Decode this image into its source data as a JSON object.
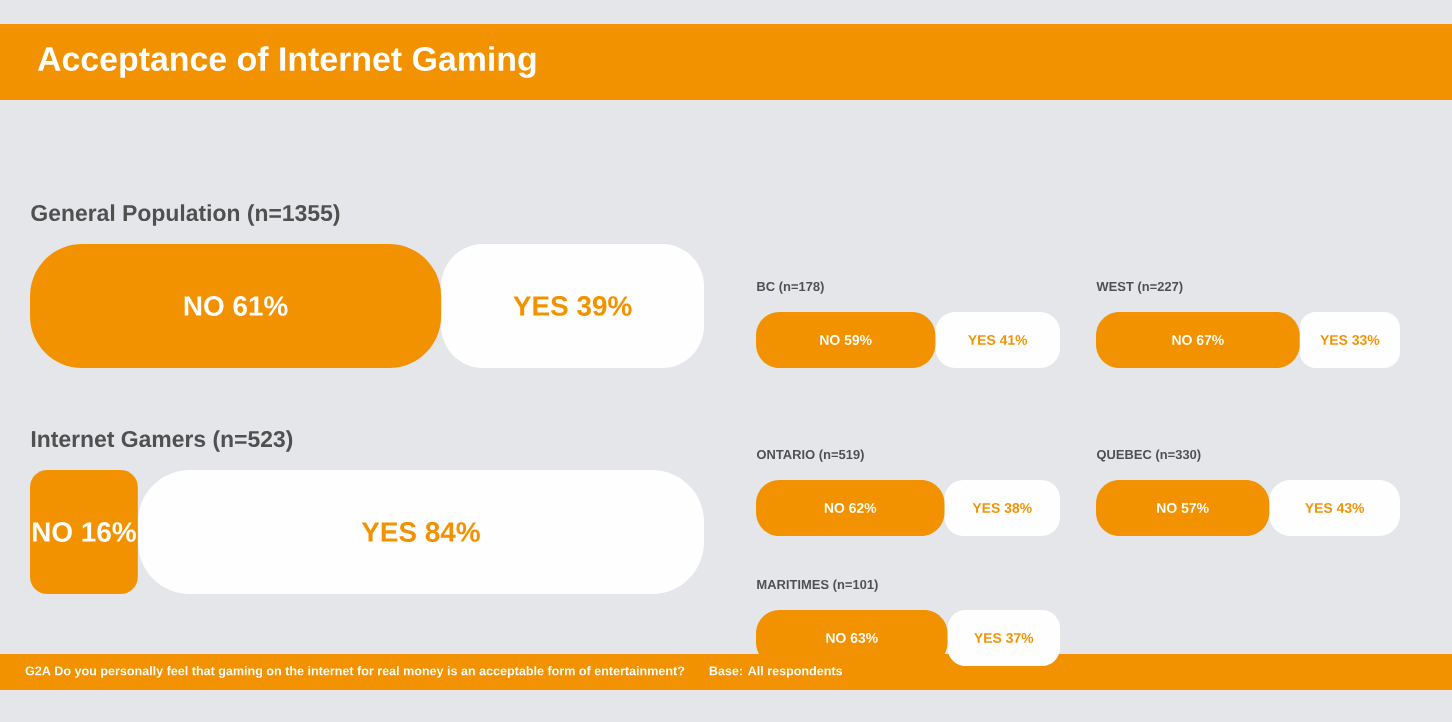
{
  "chart_data": [
    {
      "type": "other",
      "title": "Acceptance of Internet Gaming",
      "annotations": [
        "G2A Do you personally feel that gaming on the internet for real money is an acceptable form of entertainment?",
        "Base: All respondents"
      ]
    },
    {
      "type": "bar",
      "orientation": "horizontal",
      "stacked": true,
      "title": "General Population (n=1355)",
      "categories": [
        null
      ],
      "tick_labels": false,
      "series": [
        {
          "name": "NO",
          "color": "#f39200",
          "values": [
            61
          ],
          "value_labels": [
            "61%"
          ]
        },
        {
          "name": "YES",
          "color": "#fefefe",
          "values": [
            39
          ],
          "value_labels": [
            "39%"
          ]
        }
      ]
    },
    {
      "type": "bar",
      "orientation": "horizontal",
      "stacked": true,
      "title": "Internet Gamers (n=523)",
      "categories": [
        null
      ],
      "tick_labels": false,
      "series": [
        {
          "name": "NO",
          "color": "#f39200",
          "values": [
            16
          ],
          "value_labels": [
            "16%"
          ]
        },
        {
          "name": "YES",
          "color": "#fefefe",
          "values": [
            84
          ],
          "value_labels": [
            "84%"
          ]
        }
      ]
    },
    {
      "type": "bar",
      "orientation": "horizontal",
      "stacked": true,
      "title": "BC (n=178)",
      "categories": [
        null
      ],
      "tick_labels": false,
      "series": [
        {
          "name": "NO",
          "color": "#f39200",
          "values": [
            59
          ],
          "value_labels": [
            "59%"
          ]
        },
        {
          "name": "YES",
          "color": "#fefefe",
          "values": [
            41
          ],
          "value_labels": [
            "41%"
          ]
        }
      ]
    },
    {
      "type": "bar",
      "orientation": "horizontal",
      "stacked": true,
      "title": "WEST (n=227)",
      "categories": [
        null
      ],
      "tick_labels": false,
      "series": [
        {
          "name": "NO",
          "color": "#f39200",
          "values": [
            67
          ],
          "value_labels": [
            "67%"
          ]
        },
        {
          "name": "YES",
          "color": "#fefefe",
          "values": [
            33
          ],
          "value_labels": [
            "33%"
          ]
        }
      ]
    },
    {
      "type": "bar",
      "orientation": "horizontal",
      "stacked": true,
      "title": "ONTARIO (n=519)",
      "categories": [
        null
      ],
      "tick_labels": false,
      "series": [
        {
          "name": "NO",
          "color": "#f39200",
          "values": [
            62
          ],
          "value_labels": [
            "62%"
          ]
        },
        {
          "name": "YES",
          "color": "#fefefe",
          "values": [
            38
          ],
          "value_labels": [
            "38%"
          ]
        }
      ]
    },
    {
      "type": "bar",
      "orientation": "horizontal",
      "stacked": true,
      "title": "QUEBEC (n=330)",
      "categories": [
        null
      ],
      "tick_labels": false,
      "series": [
        {
          "name": "NO",
          "color": "#f39200",
          "values": [
            57
          ],
          "value_labels": [
            "57%"
          ]
        },
        {
          "name": "YES",
          "color": "#fefefe",
          "values": [
            43
          ],
          "value_labels": [
            "43%"
          ]
        }
      ]
    },
    {
      "type": "bar",
      "orientation": "horizontal",
      "stacked": true,
      "title": "MARITIMES (n=101)",
      "categories": [
        null
      ],
      "tick_labels": false,
      "series": [
        {
          "name": "NO",
          "color": "#f39200",
          "values": [
            63
          ],
          "value_labels": [
            "63%"
          ]
        },
        {
          "name": "YES",
          "color": "#fefefe",
          "values": [
            37
          ],
          "value_labels": [
            "37%"
          ]
        }
      ]
    }
  ]
}
